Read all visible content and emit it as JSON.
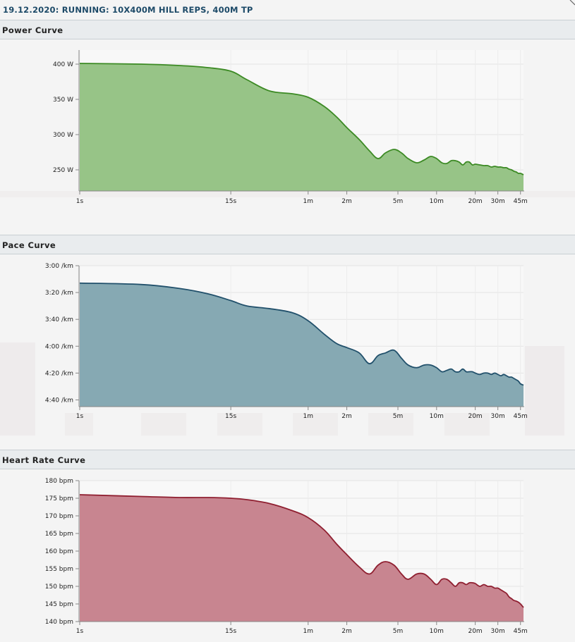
{
  "header": {
    "title": "19.12.2020: RUNNING: 10X400M HILL REPS, 400M TP"
  },
  "chart_data": [
    {
      "id": "power",
      "title": "Power Curve",
      "type": "area",
      "x_scale": "log",
      "x_unit": "seconds",
      "x_ticks": [
        {
          "v": 1,
          "label": "1s"
        },
        {
          "v": 15,
          "label": "15s"
        },
        {
          "v": 60,
          "label": "1m"
        },
        {
          "v": 120,
          "label": "2m"
        },
        {
          "v": 300,
          "label": "5m"
        },
        {
          "v": 600,
          "label": "10m"
        },
        {
          "v": 1200,
          "label": "20m"
        },
        {
          "v": 1800,
          "label": "30m"
        },
        {
          "v": 2700,
          "label": "45m"
        }
      ],
      "x_range": [
        1,
        2850
      ],
      "y_range": [
        220,
        420
      ],
      "y_ticks": [
        {
          "v": 250,
          "label": "250 W"
        },
        {
          "v": 300,
          "label": "300 W"
        },
        {
          "v": 350,
          "label": "350 W"
        },
        {
          "v": 400,
          "label": "400 W"
        }
      ],
      "grid": true,
      "colors": {
        "fill": "#97c487",
        "stroke": "#3c8a24"
      },
      "series": [
        {
          "x": [
            1,
            3,
            6,
            10,
            15,
            20,
            30,
            45,
            60,
            80,
            100,
            120,
            150,
            180,
            210,
            240,
            280,
            320,
            360,
            420,
            480,
            540,
            600,
            660,
            720,
            780,
            840,
            900,
            960,
            1020,
            1080,
            1140,
            1200,
            1300,
            1400,
            1500,
            1600,
            1700,
            1800,
            1900,
            2000,
            2100,
            2200,
            2300,
            2400,
            2500,
            2600,
            2700,
            2850
          ],
          "y": [
            401,
            400,
            398,
            395,
            390,
            378,
            362,
            358,
            353,
            340,
            325,
            310,
            293,
            277,
            266,
            274,
            279,
            274,
            266,
            260,
            264,
            269,
            266,
            260,
            259,
            263,
            263,
            261,
            257,
            261,
            261,
            257,
            258,
            257,
            256,
            256,
            254,
            255,
            254,
            254,
            253,
            253,
            251,
            250,
            248,
            247,
            245,
            245,
            243
          ]
        }
      ]
    },
    {
      "id": "pace",
      "title": "Pace Curve",
      "type": "area",
      "x_scale": "log",
      "x_unit": "seconds",
      "y_unit": "seconds per km",
      "y_inverted": true,
      "x_ticks": [
        {
          "v": 1,
          "label": "1s"
        },
        {
          "v": 15,
          "label": "15s"
        },
        {
          "v": 60,
          "label": "1m"
        },
        {
          "v": 120,
          "label": "2m"
        },
        {
          "v": 300,
          "label": "5m"
        },
        {
          "v": 600,
          "label": "10m"
        },
        {
          "v": 1200,
          "label": "20m"
        },
        {
          "v": 1800,
          "label": "30m"
        },
        {
          "v": 2700,
          "label": "45m"
        }
      ],
      "x_range": [
        1,
        2850
      ],
      "y_range": [
        180,
        285
      ],
      "y_ticks": [
        {
          "v": 180,
          "label": "3:00 /km"
        },
        {
          "v": 200,
          "label": "3:20 /km"
        },
        {
          "v": 220,
          "label": "3:40 /km"
        },
        {
          "v": 240,
          "label": "4:00 /km"
        },
        {
          "v": 260,
          "label": "4:20 /km"
        },
        {
          "v": 280,
          "label": "4:40 /km"
        }
      ],
      "grid": true,
      "colors": {
        "fill": "#86a9b3",
        "stroke": "#21506b"
      },
      "series": [
        {
          "x": [
            1,
            3,
            6,
            10,
            15,
            20,
            30,
            45,
            60,
            80,
            100,
            120,
            150,
            180,
            210,
            240,
            280,
            320,
            360,
            420,
            480,
            540,
            600,
            660,
            720,
            780,
            840,
            900,
            960,
            1020,
            1080,
            1140,
            1200,
            1300,
            1400,
            1500,
            1600,
            1700,
            1800,
            1900,
            2000,
            2100,
            2200,
            2300,
            2400,
            2500,
            2600,
            2700,
            2850
          ],
          "y": [
            193,
            194,
            197,
            201,
            206,
            210,
            212,
            215,
            221,
            231,
            238,
            241,
            245,
            253,
            247,
            245,
            243,
            249,
            254,
            256,
            254,
            254,
            256,
            259,
            258,
            257,
            259,
            259,
            257,
            259,
            259,
            259,
            260,
            261,
            260,
            260,
            261,
            260,
            261,
            262,
            261,
            262,
            263,
            263,
            264,
            265,
            266,
            268,
            269
          ]
        }
      ]
    },
    {
      "id": "heart-rate",
      "title": "Heart Rate Curve",
      "type": "area",
      "x_scale": "log",
      "x_unit": "seconds",
      "x_ticks": [
        {
          "v": 1,
          "label": "1s"
        },
        {
          "v": 15,
          "label": "15s"
        },
        {
          "v": 60,
          "label": "1m"
        },
        {
          "v": 120,
          "label": "2m"
        },
        {
          "v": 300,
          "label": "5m"
        },
        {
          "v": 600,
          "label": "10m"
        },
        {
          "v": 1200,
          "label": "20m"
        },
        {
          "v": 1800,
          "label": "30m"
        },
        {
          "v": 2700,
          "label": "45m"
        }
      ],
      "x_range": [
        1,
        2850
      ],
      "y_range": [
        140,
        180
      ],
      "y_ticks": [
        {
          "v": 140,
          "label": "140 bpm"
        },
        {
          "v": 145,
          "label": "145 bpm"
        },
        {
          "v": 150,
          "label": "150 bpm"
        },
        {
          "v": 155,
          "label": "155 bpm"
        },
        {
          "v": 160,
          "label": "160 bpm"
        },
        {
          "v": 165,
          "label": "165 bpm"
        },
        {
          "v": 170,
          "label": "170 bpm"
        },
        {
          "v": 175,
          "label": "175 bpm"
        },
        {
          "v": 180,
          "label": "180 bpm"
        }
      ],
      "grid": true,
      "colors": {
        "fill": "#c88590",
        "stroke": "#8f1f30"
      },
      "series": [
        {
          "x": [
            1,
            3,
            6,
            10,
            15,
            20,
            30,
            45,
            60,
            80,
            100,
            120,
            150,
            180,
            210,
            240,
            280,
            320,
            360,
            420,
            480,
            540,
            600,
            660,
            720,
            780,
            840,
            900,
            960,
            1020,
            1080,
            1140,
            1200,
            1300,
            1400,
            1500,
            1600,
            1700,
            1800,
            1900,
            2000,
            2100,
            2200,
            2300,
            2400,
            2500,
            2600,
            2700,
            2850
          ],
          "y": [
            176,
            175.5,
            175.2,
            175.2,
            175,
            174.6,
            173.5,
            171.5,
            169.5,
            166,
            162,
            159,
            155.5,
            153.5,
            156,
            157,
            156,
            153.5,
            152,
            153.5,
            153.5,
            152,
            150.5,
            152,
            152,
            151,
            150,
            151,
            151,
            150.5,
            151,
            151,
            150.8,
            150,
            150.5,
            150,
            150,
            149.5,
            149.5,
            149,
            148.5,
            148,
            147,
            146.5,
            146,
            145.8,
            145.5,
            145,
            144
          ]
        }
      ]
    }
  ]
}
